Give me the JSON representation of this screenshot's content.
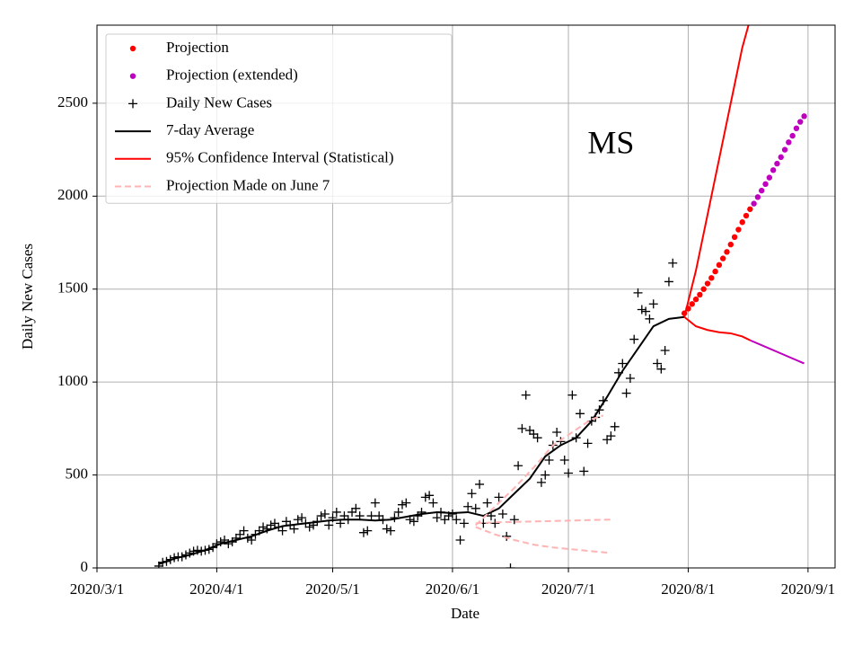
{
  "chart_data": {
    "type": "line",
    "annotation": "MS",
    "annotation_x": "2020-07-12",
    "annotation_y": 2270,
    "xlabel": "Date",
    "ylabel": "Daily New Cases",
    "xlim": [
      "2020-03-01",
      "2020-09-08"
    ],
    "ylim": [
      0,
      2920
    ],
    "xticks": [
      {
        "value": "2020-03-01",
        "label": "2020/3/1"
      },
      {
        "value": "2020-04-01",
        "label": "2020/4/1"
      },
      {
        "value": "2020-05-01",
        "label": "2020/5/1"
      },
      {
        "value": "2020-06-01",
        "label": "2020/6/1"
      },
      {
        "value": "2020-07-01",
        "label": "2020/7/1"
      },
      {
        "value": "2020-08-01",
        "label": "2020/8/1"
      },
      {
        "value": "2020-09-01",
        "label": "2020/9/1"
      }
    ],
    "yticks": [
      0,
      500,
      1000,
      1500,
      2000,
      2500
    ],
    "grid": true,
    "legend": "upper left",
    "series": [
      {
        "name": "Projection",
        "color": "#ff0000",
        "marker": "dot",
        "x": [
          "2020-07-31",
          "2020-08-01",
          "2020-08-02",
          "2020-08-03",
          "2020-08-04",
          "2020-08-05",
          "2020-08-06",
          "2020-08-07",
          "2020-08-08",
          "2020-08-09",
          "2020-08-10",
          "2020-08-11",
          "2020-08-12",
          "2020-08-13",
          "2020-08-14",
          "2020-08-15",
          "2020-08-16",
          "2020-08-17"
        ],
        "values": [
          1370,
          1395,
          1420,
          1445,
          1470,
          1500,
          1530,
          1560,
          1595,
          1630,
          1665,
          1700,
          1740,
          1780,
          1820,
          1860,
          1895,
          1930
        ]
      },
      {
        "name": "Projection (extended)",
        "color": "#bf00bf",
        "marker": "dot",
        "x": [
          "2020-08-18",
          "2020-08-19",
          "2020-08-20",
          "2020-08-21",
          "2020-08-22",
          "2020-08-23",
          "2020-08-24",
          "2020-08-25",
          "2020-08-26",
          "2020-08-27",
          "2020-08-28",
          "2020-08-29",
          "2020-08-30",
          "2020-08-31"
        ],
        "values": [
          1960,
          1995,
          2030,
          2065,
          2100,
          2140,
          2175,
          2210,
          2250,
          2290,
          2325,
          2365,
          2400,
          2430
        ]
      },
      {
        "name": "Daily New Cases",
        "color": "#000000",
        "marker": "plus",
        "x": [
          "2020-03-17",
          "2020-03-18",
          "2020-03-19",
          "2020-03-20",
          "2020-03-21",
          "2020-03-22",
          "2020-03-23",
          "2020-03-24",
          "2020-03-25",
          "2020-03-26",
          "2020-03-27",
          "2020-03-28",
          "2020-03-29",
          "2020-03-30",
          "2020-03-31",
          "2020-04-01",
          "2020-04-02",
          "2020-04-03",
          "2020-04-04",
          "2020-04-05",
          "2020-04-06",
          "2020-04-07",
          "2020-04-08",
          "2020-04-09",
          "2020-04-10",
          "2020-04-11",
          "2020-04-12",
          "2020-04-13",
          "2020-04-14",
          "2020-04-15",
          "2020-04-16",
          "2020-04-17",
          "2020-04-18",
          "2020-04-19",
          "2020-04-20",
          "2020-04-21",
          "2020-04-22",
          "2020-04-23",
          "2020-04-24",
          "2020-04-25",
          "2020-04-26",
          "2020-04-27",
          "2020-04-28",
          "2020-04-29",
          "2020-04-30",
          "2020-05-01",
          "2020-05-02",
          "2020-05-03",
          "2020-05-04",
          "2020-05-05",
          "2020-05-06",
          "2020-05-07",
          "2020-05-08",
          "2020-05-09",
          "2020-05-10",
          "2020-05-11",
          "2020-05-12",
          "2020-05-13",
          "2020-05-14",
          "2020-05-15",
          "2020-05-16",
          "2020-05-17",
          "2020-05-18",
          "2020-05-19",
          "2020-05-20",
          "2020-05-21",
          "2020-05-22",
          "2020-05-23",
          "2020-05-24",
          "2020-05-25",
          "2020-05-26",
          "2020-05-27",
          "2020-05-28",
          "2020-05-29",
          "2020-05-30",
          "2020-05-31",
          "2020-06-01",
          "2020-06-02",
          "2020-06-03",
          "2020-06-04",
          "2020-06-05",
          "2020-06-06",
          "2020-06-07",
          "2020-06-08",
          "2020-06-09",
          "2020-06-10",
          "2020-06-11",
          "2020-06-12",
          "2020-06-13",
          "2020-06-14",
          "2020-06-15",
          "2020-06-16",
          "2020-06-17",
          "2020-06-18",
          "2020-06-19",
          "2020-06-20",
          "2020-06-21",
          "2020-06-22",
          "2020-06-23",
          "2020-06-24",
          "2020-06-25",
          "2020-06-26",
          "2020-06-27",
          "2020-06-28",
          "2020-06-29",
          "2020-06-30",
          "2020-07-01",
          "2020-07-02",
          "2020-07-03",
          "2020-07-04",
          "2020-07-05",
          "2020-07-06",
          "2020-07-07",
          "2020-07-08",
          "2020-07-09",
          "2020-07-10",
          "2020-07-11",
          "2020-07-12",
          "2020-07-13",
          "2020-07-14",
          "2020-07-15",
          "2020-07-16",
          "2020-07-17",
          "2020-07-18",
          "2020-07-19",
          "2020-07-20",
          "2020-07-21",
          "2020-07-22",
          "2020-07-23",
          "2020-07-24",
          "2020-07-25",
          "2020-07-26",
          "2020-07-27",
          "2020-07-28"
        ],
        "values": [
          10,
          30,
          35,
          45,
          55,
          60,
          60,
          70,
          80,
          90,
          95,
          90,
          95,
          100,
          110,
          130,
          140,
          150,
          130,
          140,
          160,
          180,
          200,
          160,
          150,
          180,
          200,
          220,
          210,
          230,
          240,
          220,
          200,
          250,
          230,
          210,
          260,
          270,
          240,
          220,
          230,
          250,
          280,
          290,
          230,
          270,
          300,
          240,
          280,
          260,
          300,
          320,
          280,
          190,
          200,
          280,
          350,
          280,
          260,
          210,
          200,
          270,
          300,
          340,
          350,
          260,
          250,
          280,
          300,
          380,
          390,
          350,
          270,
          300,
          260,
          280,
          290,
          260,
          150,
          240,
          330,
          400,
          320,
          450,
          240,
          350,
          280,
          240,
          380,
          290,
          170,
          0,
          260,
          550,
          750,
          930,
          740,
          720,
          700,
          460,
          500,
          580,
          660,
          730,
          680,
          580,
          510,
          930,
          700,
          830,
          520,
          670,
          790,
          810,
          850,
          900,
          690,
          710,
          760,
          1050,
          1100,
          940,
          1020,
          1230,
          1480,
          1390,
          1380,
          1340,
          1420,
          1100,
          1070,
          1170,
          1540,
          1640
        ]
      },
      {
        "name": "7-day Average",
        "color": "#000000",
        "line": "solid",
        "x": [
          "2020-03-17",
          "2020-03-21",
          "2020-03-25",
          "2020-03-29",
          "2020-04-02",
          "2020-04-06",
          "2020-04-10",
          "2020-04-14",
          "2020-04-18",
          "2020-04-22",
          "2020-04-26",
          "2020-04-30",
          "2020-05-04",
          "2020-05-08",
          "2020-05-12",
          "2020-05-16",
          "2020-05-20",
          "2020-05-24",
          "2020-05-28",
          "2020-06-01",
          "2020-06-05",
          "2020-06-09",
          "2020-06-13",
          "2020-06-17",
          "2020-06-21",
          "2020-06-25",
          "2020-06-29",
          "2020-07-03",
          "2020-07-07",
          "2020-07-11",
          "2020-07-15",
          "2020-07-19",
          "2020-07-23",
          "2020-07-27",
          "2020-07-31"
        ],
        "values": [
          20,
          50,
          70,
          95,
          130,
          150,
          170,
          200,
          225,
          235,
          245,
          255,
          260,
          260,
          255,
          260,
          275,
          290,
          300,
          295,
          300,
          280,
          320,
          400,
          480,
          600,
          660,
          700,
          790,
          920,
          1060,
          1180,
          1300,
          1340,
          1350
        ]
      },
      {
        "name": "95% Confidence Interval (Statistical)",
        "color": "#ff0000",
        "line": "solid",
        "x": [
          "2020-07-31",
          "2020-08-03",
          "2020-08-06",
          "2020-08-09",
          "2020-08-12",
          "2020-08-15",
          "2020-08-17"
        ],
        "values": [
          1350,
          1600,
          1900,
          2200,
          2500,
          2800,
          2950
        ]
      },
      {
        "color": "#ff0000",
        "line": "solid",
        "x": [
          "2020-07-31",
          "2020-08-03",
          "2020-08-06",
          "2020-08-09",
          "2020-08-12",
          "2020-08-15",
          "2020-08-17"
        ],
        "values": [
          1350,
          1300,
          1280,
          1268,
          1262,
          1245,
          1225
        ]
      },
      {
        "color": "#bf00bf",
        "line": "solid",
        "x": [
          "2020-08-17",
          "2020-08-31"
        ],
        "values": [
          1225,
          1100
        ]
      },
      {
        "name": "Projection Made on June 7",
        "color": "#ffb3b3",
        "line": "dashed",
        "x": [
          "2020-06-07",
          "2020-06-12",
          "2020-06-17",
          "2020-06-22",
          "2020-06-27",
          "2020-07-02",
          "2020-07-07",
          "2020-07-10"
        ],
        "values": [
          230,
          330,
          430,
          540,
          660,
          730,
          800,
          820
        ]
      },
      {
        "color": "#ffb3b3",
        "line": "dashed",
        "x": [
          "2020-06-07",
          "2020-06-12",
          "2020-06-22",
          "2020-07-02",
          "2020-07-12"
        ],
        "values": [
          240,
          245,
          250,
          255,
          260
        ]
      },
      {
        "color": "#ffb3b3",
        "line": "dashed",
        "x": [
          "2020-06-07",
          "2020-06-12",
          "2020-06-17",
          "2020-06-22",
          "2020-06-27",
          "2020-07-02",
          "2020-07-12"
        ],
        "values": [
          220,
          180,
          150,
          125,
          110,
          100,
          80
        ]
      }
    ]
  }
}
